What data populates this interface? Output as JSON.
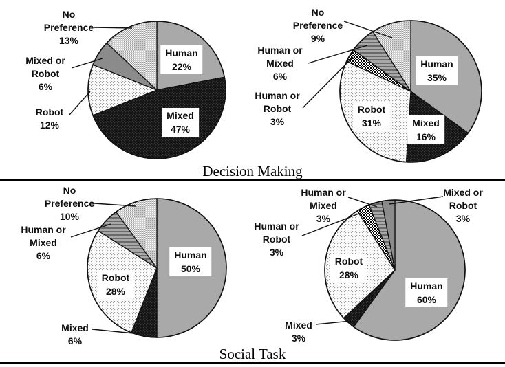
{
  "sections": [
    {
      "title": "Decision Making"
    },
    {
      "title": "Social Task"
    }
  ],
  "palette": {
    "human_gray": "#a9a9a9",
    "mixed_or_robot_gray": "#8b8b8b",
    "mixed_black": "#141414",
    "robot_white": "#ffffff",
    "line_black": "#111111"
  },
  "chart_data": [
    {
      "type": "pie",
      "section": "Decision Making",
      "position": "left",
      "categories": [
        "Human",
        "Mixed",
        "Robot",
        "Mixed or Robot",
        "No Preference"
      ],
      "values": [
        22,
        47,
        12,
        6,
        13
      ],
      "fills": [
        "gray",
        "black-dots",
        "white-dots",
        "dark-gray",
        "checker-light"
      ],
      "label_text": {
        "human": "Human\n22%",
        "mixed": "Mixed\n47%",
        "robot": "Robot\n12%",
        "mixed_or_robot": "Mixed or\nRobot\n6%",
        "no_preference": "No\nPreference\n13%"
      }
    },
    {
      "type": "pie",
      "section": "Decision Making",
      "position": "right",
      "categories": [
        "Human",
        "Mixed",
        "Robot",
        "Human or Robot",
        "Human or Mixed",
        "No Preference"
      ],
      "values": [
        35,
        16,
        31,
        3,
        6,
        9
      ],
      "fills": [
        "gray",
        "black-dots",
        "white-dots",
        "checker-bw",
        "stripes",
        "checker-light"
      ],
      "label_text": {
        "human": "Human\n35%",
        "mixed": "Mixed\n16%",
        "robot": "Robot\n31%",
        "human_or_robot": "Human or\nRobot\n3%",
        "human_or_mixed": "Human or\nMixed\n6%",
        "no_preference": "No\nPreference\n9%"
      }
    },
    {
      "type": "pie",
      "section": "Social Task",
      "position": "left",
      "categories": [
        "Human",
        "Mixed",
        "Robot",
        "Human or Mixed",
        "No Preference"
      ],
      "values": [
        50,
        6,
        28,
        6,
        10
      ],
      "fills": [
        "gray",
        "black-dots",
        "white-dots",
        "stripes",
        "checker-light"
      ],
      "label_text": {
        "human": "Human\n50%",
        "mixed": "Mixed\n6%",
        "robot": "Robot\n28%",
        "human_or_mixed": "Human or\nMixed\n6%",
        "no_preference": "No\nPreference\n10%"
      }
    },
    {
      "type": "pie",
      "section": "Social Task",
      "position": "right",
      "categories": [
        "Human",
        "Mixed",
        "Robot",
        "Human or Robot",
        "Human or Mixed",
        "Mixed or Robot"
      ],
      "values": [
        60,
        3,
        28,
        3,
        3,
        3
      ],
      "fills": [
        "gray",
        "black-dots",
        "white-dots",
        "checker-bw",
        "stripes",
        "dark-gray"
      ],
      "label_text": {
        "human": "Human\n60%",
        "mixed": "Mixed\n3%",
        "robot": "Robot\n28%",
        "human_or_robot": "Human or\nRobot\n3%",
        "human_or_mixed": "Human or\nMixed\n3%",
        "mixed_or_robot": "Mixed or\nRobot\n3%"
      }
    }
  ]
}
